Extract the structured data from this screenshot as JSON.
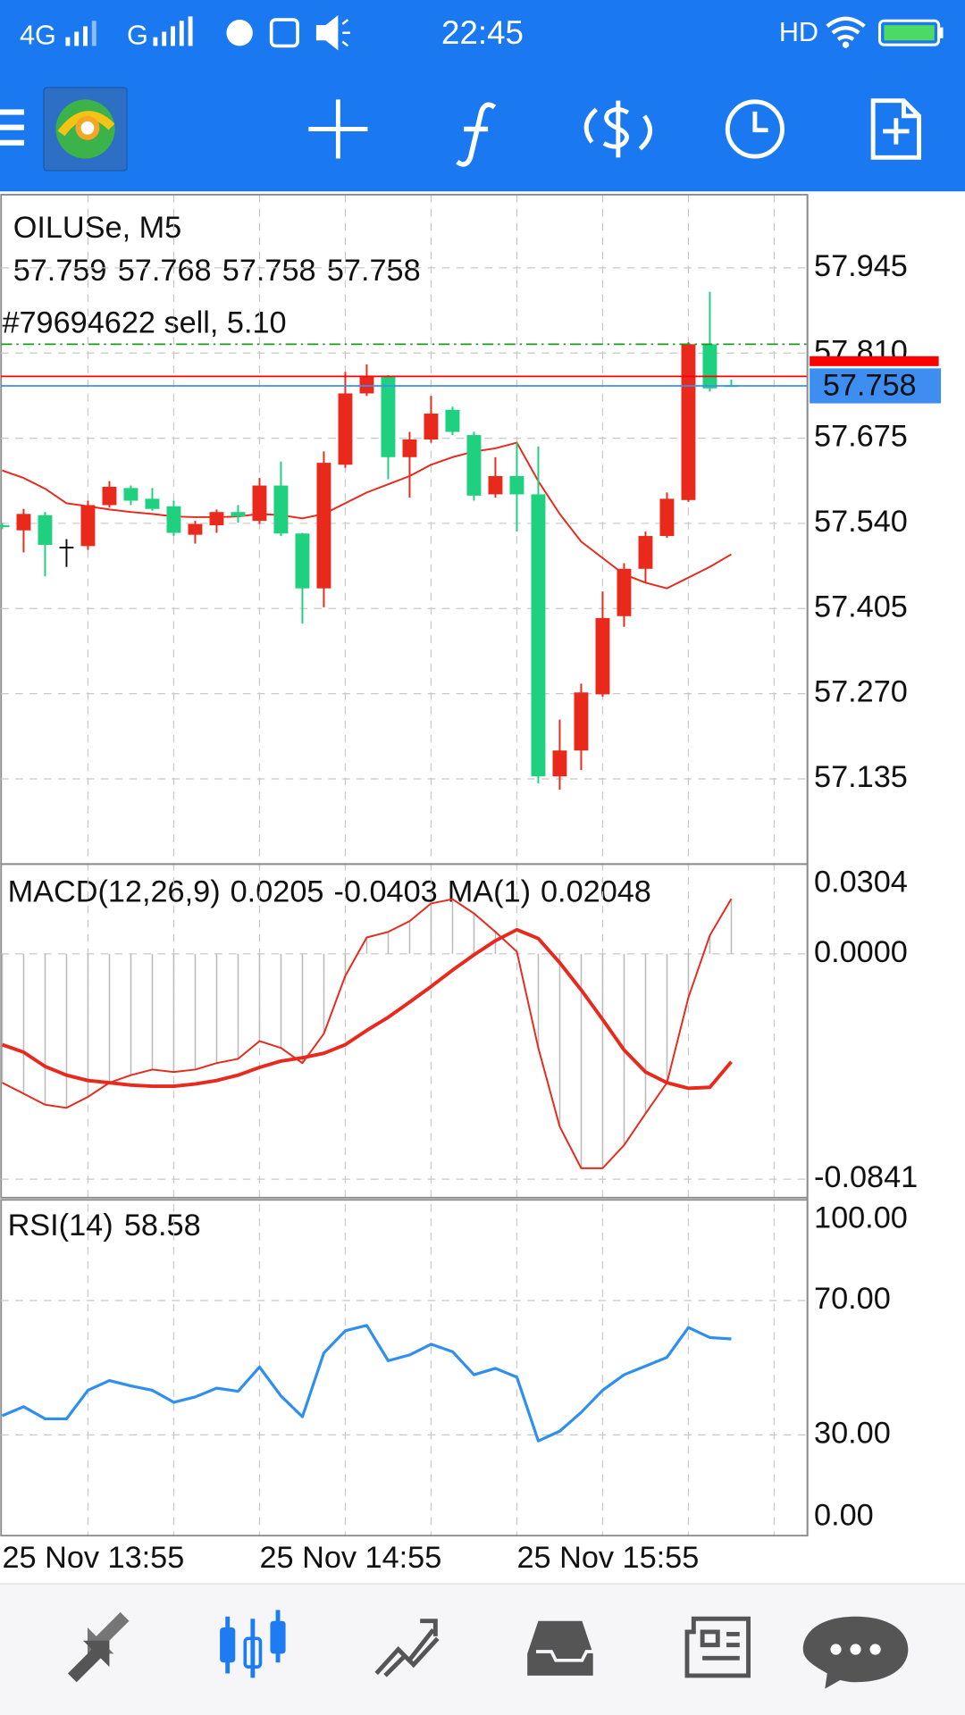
{
  "status_bar": {
    "network_1": "4G",
    "network_2": "G",
    "time": "22:45",
    "hd": "HD"
  },
  "chart_data": [
    {
      "type": "candlestick",
      "title": "OILUSe, M5",
      "annotation": "#79694622 sell, 5.10",
      "open": [
        57.537,
        57.529,
        57.553,
        57.503,
        57.504,
        57.569,
        57.596,
        57.579,
        57.567,
        57.522,
        57.537,
        57.558,
        57.544,
        57.6,
        57.524,
        57.437,
        57.633,
        57.746,
        57.772,
        57.645,
        57.673,
        57.72,
        57.68,
        57.586,
        57.615,
        57.586,
        57.139,
        57.18,
        57.269,
        57.393,
        57.468,
        57.52,
        57.577,
        57.824,
        57.759
      ],
      "high": [
        57.541,
        57.563,
        57.558,
        57.515,
        57.576,
        57.607,
        57.6,
        57.596,
        57.576,
        57.544,
        57.562,
        57.569,
        57.612,
        57.638,
        57.525,
        57.654,
        57.78,
        57.792,
        57.775,
        57.685,
        57.742,
        57.725,
        57.685,
        57.645,
        57.668,
        57.662,
        57.229,
        57.286,
        57.432,
        57.477,
        57.527,
        57.589,
        57.827,
        57.907,
        57.768
      ],
      "low": [
        57.531,
        57.494,
        57.456,
        57.471,
        57.498,
        57.565,
        57.569,
        57.56,
        57.52,
        57.508,
        57.525,
        57.541,
        57.539,
        57.52,
        57.381,
        57.407,
        57.628,
        57.742,
        57.61,
        57.581,
        57.668,
        57.68,
        57.576,
        57.581,
        57.527,
        57.128,
        57.118,
        57.149,
        57.265,
        57.376,
        57.446,
        57.517,
        57.574,
        57.749,
        57.758
      ],
      "close": [
        57.534,
        57.555,
        57.506,
        57.503,
        57.569,
        57.598,
        57.576,
        57.563,
        57.525,
        57.539,
        57.558,
        57.551,
        57.6,
        57.524,
        57.437,
        57.636,
        57.746,
        57.772,
        57.645,
        57.673,
        57.714,
        57.685,
        57.584,
        57.615,
        57.586,
        57.139,
        57.18,
        57.272,
        57.39,
        57.468,
        57.52,
        57.579,
        57.824,
        57.754,
        57.758
      ],
      "up_color": "#e8291c",
      "down_color": "#1fd17e",
      "doji_color": "#111111",
      "series": [
        {
          "color": "#e8291c",
          "values": [
            57.624,
            57.612,
            57.595,
            57.572,
            57.567,
            57.562,
            57.558,
            57.555,
            57.551,
            57.55,
            57.55,
            57.551,
            57.555,
            57.553,
            57.548,
            57.555,
            57.572,
            57.589,
            57.602,
            57.615,
            57.633,
            57.645,
            57.654,
            57.659,
            57.668,
            57.607,
            57.555,
            57.511,
            57.485,
            57.459,
            57.446,
            57.437,
            57.454,
            57.471,
            57.491
          ]
        }
      ],
      "price_lines": [
        {
          "value": 57.824,
          "color": "#1a9a1a",
          "dash": "dashdot"
        },
        {
          "value": 57.773,
          "color": "#ff0000",
          "dash": "solid"
        }
      ],
      "bid": 57.758,
      "bid_color": "#3d8ef0",
      "ask": 57.798,
      "ask_color": "#ff0000",
      "ylim": [
        57.0,
        58.061
      ],
      "yticks": [
        57.945,
        {
          "value": 57.81,
          "label": "57.810"
        },
        57.675,
        {
          "value": 57.54,
          "label": "57.540"
        },
        57.405,
        {
          "value": 57.27,
          "label": "57.270"
        },
        57.135
      ],
      "grid": true
    },
    {
      "type": "macd",
      "title": "MACD(12,26,9)",
      "series": [
        {
          "name": "MA(1)",
          "color": "#bcbcbc",
          "style": "histogram",
          "values": [
            -0.0481,
            -0.0522,
            -0.0563,
            -0.0575,
            -0.0534,
            -0.0481,
            -0.0453,
            -0.0432,
            -0.0441,
            -0.0432,
            -0.0408,
            -0.0392,
            -0.0326,
            -0.0351,
            -0.0408,
            -0.0298,
            -0.0082,
            0.0061,
            0.0082,
            0.0122,
            0.0188,
            0.0204,
            0.0151,
            0.0082,
            0.0008,
            -0.0351,
            -0.0645,
            -0.08,
            -0.08,
            -0.0714,
            -0.0596,
            -0.0481,
            -0.0163,
            0.0069,
            0.02048
          ]
        },
        {
          "color": "#e8291c",
          "style": "thin",
          "values": [
            -0.0481,
            -0.0522,
            -0.0563,
            -0.0575,
            -0.0534,
            -0.0481,
            -0.0453,
            -0.0432,
            -0.0441,
            -0.0432,
            -0.0408,
            -0.0392,
            -0.0326,
            -0.0351,
            -0.0408,
            -0.0298,
            -0.0082,
            0.0061,
            0.0082,
            0.0122,
            0.0188,
            0.0204,
            0.0151,
            0.0082,
            0.0008,
            -0.0351,
            -0.0645,
            -0.08,
            -0.08,
            -0.0714,
            -0.0596,
            -0.0481,
            -0.0163,
            0.0069,
            0.0205
          ]
        },
        {
          "color": "#e8291c",
          "style": "thick",
          "values": [
            -0.0339,
            -0.0367,
            -0.042,
            -0.0453,
            -0.0473,
            -0.0481,
            -0.049,
            -0.0494,
            -0.0494,
            -0.0486,
            -0.0473,
            -0.0453,
            -0.0424,
            -0.04,
            -0.0388,
            -0.0371,
            -0.0339,
            -0.0286,
            -0.0237,
            -0.018,
            -0.0122,
            -0.0061,
            -0.0004,
            0.0049,
            0.009,
            0.0057,
            -0.0033,
            -0.0135,
            -0.0245,
            -0.0359,
            -0.0441,
            -0.0481,
            -0.0502,
            -0.0498,
            -0.0403
          ]
        }
      ],
      "ylim": [
        -0.091,
        0.0335
      ],
      "yticks": [
        0.0304,
        {
          "value": 0,
          "label": "0.0000"
        },
        -0.0841
      ],
      "grid": true
    },
    {
      "type": "line",
      "title": "RSI(14)",
      "categories": [
        "25 Nov 13:55",
        null,
        null,
        null,
        null,
        null,
        null,
        null,
        null,
        null,
        null,
        null,
        "25 Nov 14:55",
        null,
        null,
        null,
        null,
        null,
        null,
        null,
        null,
        null,
        null,
        null,
        "25 Nov 15:55",
        null,
        null,
        null,
        null,
        null,
        null,
        null,
        null,
        null,
        null
      ],
      "series": [
        {
          "color": "#2e8ff0",
          "values": [
            35.7,
            38.4,
            34.8,
            34.8,
            43.3,
            46.2,
            44.6,
            43.3,
            39.7,
            41.3,
            43.9,
            43.0,
            50.2,
            41.6,
            35.4,
            54.4,
            61.0,
            62.6,
            52.1,
            53.8,
            57.0,
            54.8,
            47.9,
            49.8,
            47.2,
            28.2,
            31.1,
            36.7,
            43.3,
            47.9,
            50.5,
            53.1,
            62.0,
            59.0,
            58.58
          ]
        }
      ],
      "ylim": [
        0,
        100
      ],
      "yticks": [
        {
          "value": 100,
          "label": "100.00"
        },
        {
          "value": 70,
          "label": "70.00"
        },
        {
          "value": 30,
          "label": "30.00"
        },
        {
          "value": 0,
          "label": "0.00"
        }
      ],
      "grid": true
    }
  ]
}
